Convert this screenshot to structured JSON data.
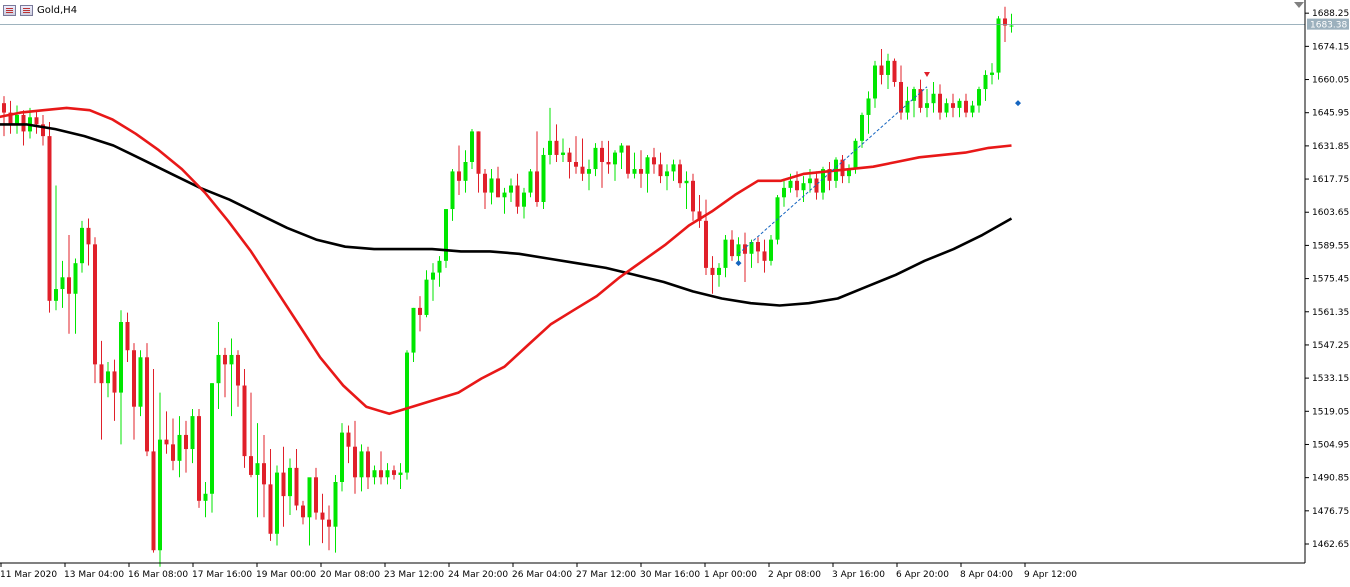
{
  "symbol": {
    "label": "Gold,H4"
  },
  "chart_data": {
    "type": "candlestick",
    "title": "Gold,H4",
    "current_price_label": "1683.38",
    "current_price": 1683.38,
    "ylim": [
      1455.0,
      1693.0
    ],
    "y_ticks": [
      "1688.25",
      "1674.15",
      "1660.05",
      "1645.95",
      "1631.85",
      "1617.75",
      "1603.65",
      "1589.55",
      "1575.45",
      "1561.35",
      "1547.25",
      "1533.15",
      "1519.05",
      "1504.95",
      "1490.85",
      "1476.75",
      "1462.65"
    ],
    "x_ticks": [
      "11 Mar 2020",
      "13 Mar 04:00",
      "16 Mar 08:00",
      "17 Mar 16:00",
      "19 Mar 00:00",
      "20 Mar 08:00",
      "23 Mar 12:00",
      "24 Mar 20:00",
      "26 Mar 04:00",
      "27 Mar 12:00",
      "30 Mar 16:00",
      "1 Apr 00:00",
      "2 Apr 08:00",
      "3 Apr 16:00",
      "6 Apr 20:00",
      "8 Apr 04:00",
      "9 Apr 12:00"
    ],
    "colors": {
      "bull": "#00e600",
      "bear": "#e0202a",
      "ma_fast": "#e81818",
      "ma_slow": "#000000",
      "grid_line": "#7f9aa8",
      "trend_line": "#1565c0"
    },
    "candles": [
      [
        1667,
        1670,
        1641,
        1650
      ],
      [
        1650,
        1653,
        1636,
        1646
      ],
      [
        1646,
        1651,
        1637,
        1641
      ],
      [
        1641,
        1649,
        1637,
        1645
      ],
      [
        1645,
        1647,
        1632,
        1638
      ],
      [
        1638,
        1648,
        1635,
        1644
      ],
      [
        1644,
        1647,
        1637,
        1641
      ],
      [
        1641,
        1645,
        1632,
        1636
      ],
      [
        1636,
        1642,
        1561,
        1566
      ],
      [
        1566,
        1615,
        1562,
        1571
      ],
      [
        1571,
        1583,
        1563,
        1576
      ],
      [
        1576,
        1594,
        1552,
        1569
      ],
      [
        1569,
        1584,
        1552,
        1582
      ],
      [
        1582,
        1600,
        1578,
        1597
      ],
      [
        1597,
        1601,
        1581,
        1590
      ],
      [
        1590,
        1593,
        1531,
        1539
      ],
      [
        1539,
        1549,
        1507,
        1531
      ],
      [
        1531,
        1540,
        1525,
        1536
      ],
      [
        1536,
        1541,
        1515,
        1527
      ],
      [
        1527,
        1562,
        1505,
        1557
      ],
      [
        1557,
        1561,
        1540,
        1545
      ],
      [
        1545,
        1548,
        1507,
        1521
      ],
      [
        1521,
        1545,
        1517,
        1542
      ],
      [
        1542,
        1548,
        1500,
        1502
      ],
      [
        1502,
        1537,
        1459,
        1460
      ],
      [
        1460,
        1527,
        1453,
        1507
      ],
      [
        1507,
        1519,
        1501,
        1505
      ],
      [
        1505,
        1516,
        1494,
        1498
      ],
      [
        1498,
        1517,
        1491,
        1509
      ],
      [
        1509,
        1515,
        1493,
        1503
      ],
      [
        1503,
        1520,
        1497,
        1517
      ],
      [
        1517,
        1520,
        1478,
        1481
      ],
      [
        1481,
        1489,
        1474,
        1484
      ],
      [
        1484,
        1531,
        1476,
        1531
      ],
      [
        1531,
        1557,
        1520,
        1543
      ],
      [
        1543,
        1546,
        1525,
        1539
      ],
      [
        1539,
        1550,
        1517,
        1543
      ],
      [
        1543,
        1545,
        1521,
        1530
      ],
      [
        1530,
        1537,
        1495,
        1500
      ],
      [
        1500,
        1527,
        1491,
        1492
      ],
      [
        1492,
        1514,
        1474,
        1497
      ],
      [
        1497,
        1509,
        1474,
        1488
      ],
      [
        1488,
        1503,
        1464,
        1467
      ],
      [
        1467,
        1496,
        1462,
        1493
      ],
      [
        1493,
        1504,
        1470,
        1483
      ],
      [
        1483,
        1499,
        1475,
        1495
      ],
      [
        1495,
        1503,
        1477,
        1479
      ],
      [
        1479,
        1481,
        1471,
        1474
      ],
      [
        1474,
        1490,
        1462,
        1491
      ],
      [
        1491,
        1495,
        1473,
        1476
      ],
      [
        1476,
        1484,
        1463,
        1473
      ],
      [
        1473,
        1479,
        1460,
        1470
      ],
      [
        1470,
        1492,
        1459,
        1489
      ],
      [
        1489,
        1514,
        1485,
        1510
      ],
      [
        1510,
        1513,
        1497,
        1504
      ],
      [
        1504,
        1515,
        1484,
        1491
      ],
      [
        1491,
        1505,
        1485,
        1502
      ],
      [
        1502,
        1504,
        1486,
        1491
      ],
      [
        1491,
        1496,
        1488,
        1494
      ],
      [
        1494,
        1502,
        1488,
        1491
      ],
      [
        1491,
        1497,
        1488,
        1494
      ],
      [
        1494,
        1496,
        1490,
        1492
      ],
      [
        1492,
        1497,
        1486,
        1493
      ],
      [
        1493,
        1545,
        1490,
        1544
      ],
      [
        1544,
        1563,
        1540,
        1563
      ],
      [
        1563,
        1568,
        1553,
        1560
      ],
      [
        1560,
        1579,
        1559,
        1575
      ],
      [
        1575,
        1582,
        1566,
        1578
      ],
      [
        1578,
        1585,
        1572,
        1583
      ],
      [
        1583,
        1605,
        1580,
        1605
      ],
      [
        1605,
        1622,
        1600,
        1621
      ],
      [
        1621,
        1632,
        1611,
        1617
      ],
      [
        1617,
        1630,
        1612,
        1625
      ],
      [
        1625,
        1639,
        1622,
        1638
      ],
      [
        1638,
        1638,
        1612,
        1620
      ],
      [
        1620,
        1622,
        1605,
        1612
      ],
      [
        1612,
        1622,
        1607,
        1618
      ],
      [
        1618,
        1623,
        1610,
        1610
      ],
      [
        1610,
        1614,
        1603,
        1612
      ],
      [
        1612,
        1618,
        1608,
        1615
      ],
      [
        1615,
        1620,
        1603,
        1606
      ],
      [
        1606,
        1614,
        1601,
        1612
      ],
      [
        1612,
        1622,
        1610,
        1621
      ],
      [
        1621,
        1638,
        1606,
        1608
      ],
      [
        1608,
        1631,
        1605,
        1628
      ],
      [
        1628,
        1648,
        1624,
        1634
      ],
      [
        1634,
        1641,
        1625,
        1628
      ],
      [
        1628,
        1635,
        1625,
        1629
      ],
      [
        1629,
        1631,
        1618,
        1625
      ],
      [
        1625,
        1636,
        1620,
        1623
      ],
      [
        1623,
        1635,
        1617,
        1620
      ],
      [
        1620,
        1626,
        1613,
        1622
      ],
      [
        1622,
        1633,
        1619,
        1631
      ],
      [
        1631,
        1634,
        1614,
        1625
      ],
      [
        1625,
        1634,
        1620,
        1624
      ],
      [
        1624,
        1630,
        1617,
        1629
      ],
      [
        1629,
        1633,
        1622,
        1632
      ],
      [
        1632,
        1632,
        1618,
        1620
      ],
      [
        1620,
        1629,
        1618,
        1622
      ],
      [
        1622,
        1630,
        1614,
        1620
      ],
      [
        1620,
        1628,
        1612,
        1627
      ],
      [
        1627,
        1631,
        1620,
        1624
      ],
      [
        1624,
        1629,
        1616,
        1619
      ],
      [
        1619,
        1624,
        1613,
        1621
      ],
      [
        1621,
        1626,
        1617,
        1624
      ],
      [
        1624,
        1626,
        1614,
        1616
      ],
      [
        1616,
        1621,
        1605,
        1617
      ],
      [
        1617,
        1620,
        1600,
        1604
      ],
      [
        1604,
        1611,
        1597,
        1600
      ],
      [
        1600,
        1609,
        1577,
        1580
      ],
      [
        1580,
        1585,
        1569,
        1577
      ],
      [
        1577,
        1582,
        1572,
        1580
      ],
      [
        1580,
        1594,
        1576,
        1592
      ],
      [
        1592,
        1596,
        1583,
        1585
      ],
      [
        1585,
        1593,
        1582,
        1590
      ],
      [
        1590,
        1595,
        1574,
        1586
      ],
      [
        1586,
        1592,
        1580,
        1591
      ],
      [
        1591,
        1593,
        1582,
        1587
      ],
      [
        1587,
        1592,
        1578,
        1583
      ],
      [
        1583,
        1594,
        1581,
        1592
      ],
      [
        1592,
        1611,
        1590,
        1610
      ],
      [
        1610,
        1618,
        1606,
        1614
      ],
      [
        1614,
        1620,
        1612,
        1617
      ],
      [
        1617,
        1621,
        1610,
        1613
      ],
      [
        1613,
        1619,
        1608,
        1616
      ],
      [
        1616,
        1622,
        1612,
        1618
      ],
      [
        1618,
        1621,
        1609,
        1612
      ],
      [
        1612,
        1623,
        1609,
        1622
      ],
      [
        1622,
        1625,
        1613,
        1617
      ],
      [
        1617,
        1627,
        1614,
        1626
      ],
      [
        1626,
        1628,
        1616,
        1619
      ],
      [
        1619,
        1624,
        1616,
        1622
      ],
      [
        1622,
        1635,
        1620,
        1634
      ],
      [
        1634,
        1646,
        1631,
        1645
      ],
      [
        1645,
        1655,
        1637,
        1652
      ],
      [
        1652,
        1668,
        1648,
        1666
      ],
      [
        1666,
        1673,
        1658,
        1662
      ],
      [
        1662,
        1671,
        1656,
        1668
      ],
      [
        1668,
        1669,
        1657,
        1659
      ],
      [
        1659,
        1666,
        1643,
        1646
      ],
      [
        1646,
        1657,
        1643,
        1651
      ],
      [
        1651,
        1657,
        1644,
        1656
      ],
      [
        1656,
        1660,
        1646,
        1648
      ],
      [
        1648,
        1656,
        1644,
        1650
      ],
      [
        1650,
        1659,
        1646,
        1654
      ],
      [
        1654,
        1658,
        1643,
        1646
      ],
      [
        1646,
        1652,
        1644,
        1650
      ],
      [
        1650,
        1654,
        1644,
        1648
      ],
      [
        1648,
        1652,
        1644,
        1651
      ],
      [
        1651,
        1654,
        1644,
        1646
      ],
      [
        1646,
        1651,
        1644,
        1649
      ],
      [
        1649,
        1657,
        1646,
        1656
      ],
      [
        1656,
        1664,
        1651,
        1662
      ],
      [
        1662,
        1667,
        1658,
        1663
      ],
      [
        1663,
        1687,
        1660,
        1686
      ],
      [
        1686,
        1691,
        1676,
        1683
      ],
      [
        1683,
        1688,
        1680,
        1683
      ]
    ],
    "ma_fast": [
      1644,
      1646,
      1647,
      1648,
      1647,
      1643,
      1637,
      1630,
      1622,
      1612,
      1600,
      1587,
      1572,
      1557,
      1542,
      1530,
      1521,
      1518,
      1521,
      1524,
      1527,
      1533,
      1538,
      1547,
      1556,
      1562,
      1568,
      1576,
      1583,
      1590,
      1598,
      1604,
      1611,
      1617,
      1617,
      1620,
      1621,
      1622,
      1623,
      1625,
      1627,
      1628,
      1629,
      1631,
      1632
    ],
    "ma_slow": [
      1641,
      1641,
      1639,
      1636,
      1632,
      1626,
      1620,
      1614,
      1609,
      1603,
      1597,
      1592,
      1589,
      1588,
      1588,
      1588,
      1587,
      1587,
      1586,
      1584,
      1582,
      1580,
      1577,
      1574,
      1570,
      1567,
      1565,
      1564,
      1565,
      1567,
      1572,
      1577,
      1583,
      1588,
      1594,
      1601
    ],
    "trend_line": {
      "from": [
        114,
        1586
      ],
      "to": [
        143,
        1657
      ]
    },
    "markers": [
      {
        "index": 114,
        "price": 1582,
        "color": "#1565c0",
        "shape": "diamond"
      },
      {
        "index": 143,
        "price": 1662,
        "color": "#e0202a",
        "shape": "arrow"
      },
      {
        "index": 157,
        "price": 1650,
        "color": "#1565c0",
        "shape": "diamond"
      }
    ]
  }
}
